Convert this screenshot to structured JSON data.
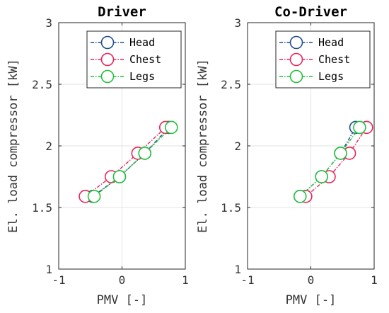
{
  "chart_data": [
    {
      "type": "line",
      "title": "Driver",
      "xlabel": "PMV [-]",
      "ylabel": "El. load compressor [kW]",
      "xlim": [
        -1,
        1
      ],
      "ylim": [
        1,
        3
      ],
      "xticks": [
        "-1",
        "0",
        "1"
      ],
      "yticks": [
        "1",
        "1.5",
        "2",
        "2.5",
        "3"
      ],
      "grid": true,
      "legend": "top-right",
      "series": [
        {
          "name": "Head",
          "color": "#1f4e8c",
          "x": [
            -0.46,
            -0.04,
            0.36,
            0.74
          ],
          "y": [
            1.59,
            1.75,
            1.94,
            2.15
          ]
        },
        {
          "name": "Chest",
          "color": "#e8245a",
          "x": [
            -0.58,
            -0.17,
            0.25,
            0.69
          ],
          "y": [
            1.59,
            1.75,
            1.94,
            2.15
          ]
        },
        {
          "name": "Legs",
          "color": "#22c03c",
          "x": [
            -0.44,
            -0.04,
            0.36,
            0.78
          ],
          "y": [
            1.59,
            1.75,
            1.94,
            2.15
          ]
        }
      ]
    },
    {
      "type": "line",
      "title": "Co-Driver",
      "xlabel": "PMV [-]",
      "ylabel": "El. load compressor [kW]",
      "xlim": [
        -1,
        1
      ],
      "ylim": [
        1,
        3
      ],
      "xticks": [
        "-1",
        "0",
        "1"
      ],
      "yticks": [
        "1",
        "1.5",
        "2",
        "2.5",
        "3"
      ],
      "grid": true,
      "legend": "top-right",
      "series": [
        {
          "name": "Head",
          "color": "#1f4e8c",
          "x": [
            -0.17,
            0.17,
            0.47,
            0.71
          ],
          "y": [
            1.59,
            1.75,
            1.94,
            2.15
          ]
        },
        {
          "name": "Chest",
          "color": "#e8245a",
          "x": [
            -0.08,
            0.29,
            0.61,
            0.88
          ],
          "y": [
            1.59,
            1.75,
            1.94,
            2.15
          ]
        },
        {
          "name": "Legs",
          "color": "#22c03c",
          "x": [
            -0.17,
            0.17,
            0.47,
            0.77
          ],
          "y": [
            1.59,
            1.75,
            1.94,
            2.15
          ]
        }
      ]
    }
  ]
}
